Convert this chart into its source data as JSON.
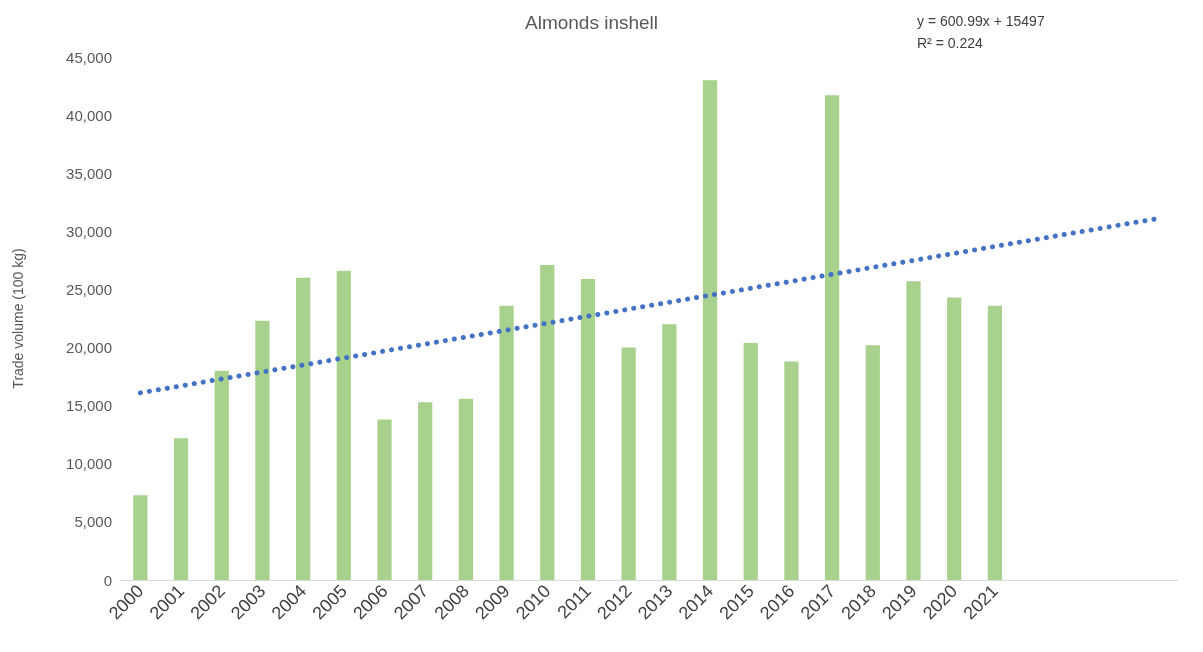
{
  "chart_data": {
    "type": "bar",
    "title": "Almonds inshell",
    "ylabel": "Trade volume (100 kg)",
    "annotations": [
      "y = 600.99x + 15497\nR² = 0.224"
    ],
    "categories": [
      "2000",
      "2001",
      "2002",
      "2003",
      "2004",
      "2005",
      "2006",
      "2007",
      "2008",
      "2009",
      "2010",
      "2011",
      "2012",
      "2013",
      "2014",
      "2015",
      "2016",
      "2017",
      "2018",
      "2019",
      "2020",
      "2021",
      null,
      null,
      null,
      null
    ],
    "series": [
      {
        "color": "#a9d18e",
        "values": [
          7300,
          12200,
          18000,
          22300,
          26000,
          26600,
          13800,
          15300,
          15600,
          23600,
          27100,
          25900,
          20000,
          22000,
          43000,
          20400,
          18800,
          41700,
          20200,
          25700,
          24300,
          23600,
          null,
          null,
          null,
          null
        ]
      },
      {
        "type": "line",
        "color": "#4472c4",
        "line_style": "dotted",
        "marker": "none",
        "values": [
          16100,
          16700,
          17300,
          17900,
          18500,
          19100,
          19700,
          20300,
          20900,
          21500,
          22100,
          22700,
          23300,
          23900,
          24500,
          25100,
          25700,
          26300,
          26900,
          27500,
          28100,
          28700,
          29300,
          29900,
          30500,
          31100
        ]
      }
    ],
    "ylim": [
      0,
      45000
    ],
    "yticks": [
      {
        "value": 0,
        "label": "0"
      },
      {
        "value": 5000,
        "label": "5,000"
      },
      {
        "value": 10000,
        "label": "10,000"
      },
      {
        "value": 15000,
        "label": "15,000"
      },
      {
        "value": 20000,
        "label": "20,000"
      },
      {
        "value": 25000,
        "label": "25,000"
      },
      {
        "value": 30000,
        "label": "30,000"
      },
      {
        "value": 35000,
        "label": "35,000"
      },
      {
        "value": 40000,
        "label": "40,000"
      },
      {
        "value": 45000,
        "label": "45,000"
      }
    ],
    "grid": false
  }
}
